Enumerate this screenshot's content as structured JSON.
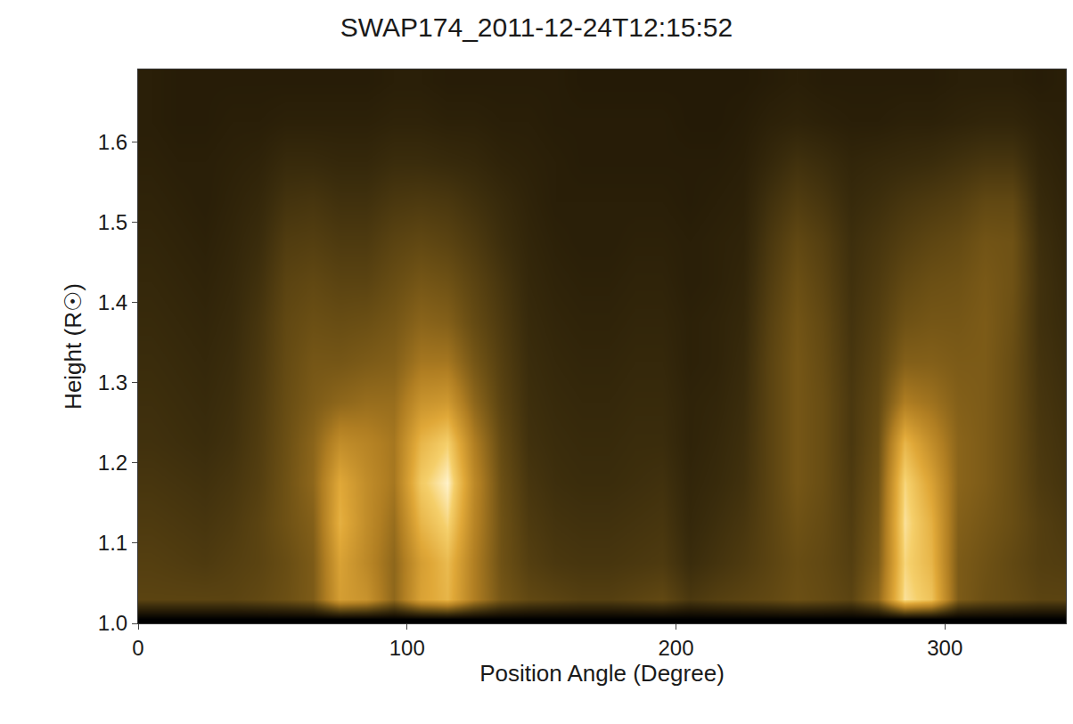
{
  "chart_data": {
    "type": "heatmap",
    "title": "SWAP174_2011-12-24T12:15:52",
    "x_label": "Position Angle (Degree)",
    "y_label": "Height (R☉)",
    "x": [
      5,
      15,
      25,
      35,
      45,
      55,
      65,
      75,
      85,
      95,
      105,
      115,
      125,
      135,
      145,
      155,
      165,
      175,
      185,
      195,
      205,
      215,
      225,
      235,
      245,
      255,
      265,
      275,
      285,
      295,
      305,
      315,
      325,
      335,
      345
    ],
    "y": [
      1.005,
      1.03,
      1.075,
      1.125,
      1.175,
      1.225,
      1.275,
      1.325,
      1.375,
      1.425,
      1.475,
      1.525,
      1.575,
      1.625,
      1.675
    ],
    "cells": [
      [
        0,
        0,
        0,
        0,
        0,
        0,
        0,
        0,
        0,
        0,
        0,
        0,
        0,
        0,
        0,
        0,
        0,
        0,
        0,
        0,
        0,
        0,
        0,
        0,
        0,
        0,
        0,
        0,
        0,
        0,
        0,
        0,
        0,
        0,
        0
      ],
      [
        30,
        30,
        30,
        30,
        32,
        35,
        40,
        70,
        65,
        45,
        72,
        80,
        55,
        38,
        32,
        30,
        28,
        28,
        30,
        32,
        25,
        28,
        30,
        32,
        35,
        33,
        30,
        45,
        95,
        85,
        40,
        35,
        33,
        30,
        30
      ],
      [
        28,
        27,
        26,
        28,
        30,
        34,
        40,
        72,
        60,
        45,
        70,
        82,
        55,
        36,
        28,
        25,
        24,
        24,
        25,
        26,
        20,
        23,
        26,
        30,
        34,
        32,
        28,
        40,
        92,
        80,
        40,
        36,
        32,
        28,
        27
      ],
      [
        26,
        25,
        24,
        26,
        30,
        36,
        42,
        78,
        62,
        48,
        80,
        92,
        58,
        36,
        26,
        23,
        22,
        22,
        23,
        24,
        18,
        21,
        24,
        30,
        36,
        33,
        27,
        38,
        95,
        78,
        42,
        38,
        34,
        28,
        25
      ],
      [
        24,
        23,
        22,
        24,
        28,
        36,
        45,
        75,
        62,
        52,
        88,
        100,
        60,
        35,
        24,
        21,
        20,
        20,
        21,
        22,
        17,
        19,
        22,
        30,
        38,
        34,
        26,
        36,
        92,
        72,
        44,
        40,
        34,
        26,
        23
      ],
      [
        22,
        21,
        20,
        22,
        27,
        35,
        44,
        62,
        58,
        52,
        80,
        90,
        55,
        33,
        22,
        20,
        19,
        19,
        20,
        20,
        16,
        18,
        21,
        30,
        38,
        34,
        25,
        34,
        80,
        62,
        44,
        40,
        34,
        25,
        22
      ],
      [
        21,
        20,
        19,
        21,
        26,
        34,
        40,
        45,
        48,
        48,
        65,
        68,
        45,
        30,
        21,
        19,
        18,
        18,
        19,
        19,
        16,
        17,
        20,
        30,
        38,
        34,
        25,
        32,
        55,
        50,
        42,
        40,
        34,
        24,
        21
      ],
      [
        20,
        19,
        18,
        20,
        25,
        33,
        38,
        38,
        40,
        42,
        52,
        52,
        38,
        28,
        20,
        18,
        17,
        17,
        18,
        18,
        15,
        16,
        19,
        30,
        38,
        33,
        24,
        30,
        42,
        42,
        40,
        40,
        34,
        23,
        20
      ],
      [
        19,
        18,
        17,
        19,
        24,
        32,
        35,
        34,
        35,
        38,
        44,
        42,
        33,
        26,
        19,
        17,
        16,
        16,
        17,
        17,
        15,
        16,
        18,
        29,
        37,
        32,
        23,
        28,
        36,
        38,
        38,
        40,
        35,
        22,
        19
      ],
      [
        18,
        17,
        16,
        18,
        22,
        30,
        32,
        30,
        30,
        34,
        38,
        36,
        30,
        24,
        18,
        16,
        15,
        15,
        16,
        16,
        14,
        15,
        17,
        27,
        35,
        30,
        22,
        26,
        32,
        35,
        36,
        39,
        36,
        22,
        18
      ],
      [
        17,
        16,
        15,
        17,
        20,
        27,
        28,
        26,
        26,
        30,
        32,
        30,
        26,
        21,
        17,
        15,
        14,
        14,
        15,
        15,
        14,
        15,
        16,
        25,
        32,
        28,
        21,
        24,
        28,
        31,
        33,
        37,
        36,
        21,
        17
      ],
      [
        16,
        15,
        14,
        16,
        18,
        23,
        24,
        22,
        22,
        25,
        26,
        25,
        22,
        19,
        16,
        14,
        14,
        14,
        14,
        14,
        13,
        14,
        15,
        22,
        27,
        24,
        19,
        21,
        24,
        26,
        28,
        32,
        32,
        19,
        16
      ],
      [
        15,
        14,
        14,
        15,
        16,
        19,
        19,
        18,
        18,
        20,
        20,
        19,
        18,
        16,
        15,
        14,
        13,
        13,
        13,
        13,
        13,
        13,
        14,
        18,
        22,
        20,
        17,
        18,
        19,
        20,
        22,
        24,
        24,
        17,
        15
      ],
      [
        14,
        13,
        13,
        14,
        14,
        15,
        15,
        15,
        15,
        16,
        16,
        15,
        15,
        14,
        14,
        13,
        13,
        13,
        13,
        13,
        12,
        12,
        13,
        15,
        16,
        15,
        14,
        14,
        15,
        15,
        16,
        17,
        17,
        15,
        14
      ],
      [
        14,
        13,
        13,
        13,
        13,
        13,
        13,
        13,
        13,
        14,
        14,
        13,
        13,
        13,
        13,
        13,
        12,
        12,
        12,
        12,
        12,
        12,
        12,
        13,
        14,
        13,
        13,
        13,
        13,
        13,
        14,
        14,
        14,
        13,
        14
      ]
    ],
    "xlim": [
      0,
      345
    ],
    "ylim": [
      1.0,
      1.69
    ],
    "xticks": [
      0,
      100,
      200,
      300
    ],
    "yticks": [
      {
        "value": 1,
        "label": "1.0"
      },
      1.1,
      1.2,
      1.3,
      1.4,
      1.5,
      1.6
    ],
    "grid": false
  }
}
